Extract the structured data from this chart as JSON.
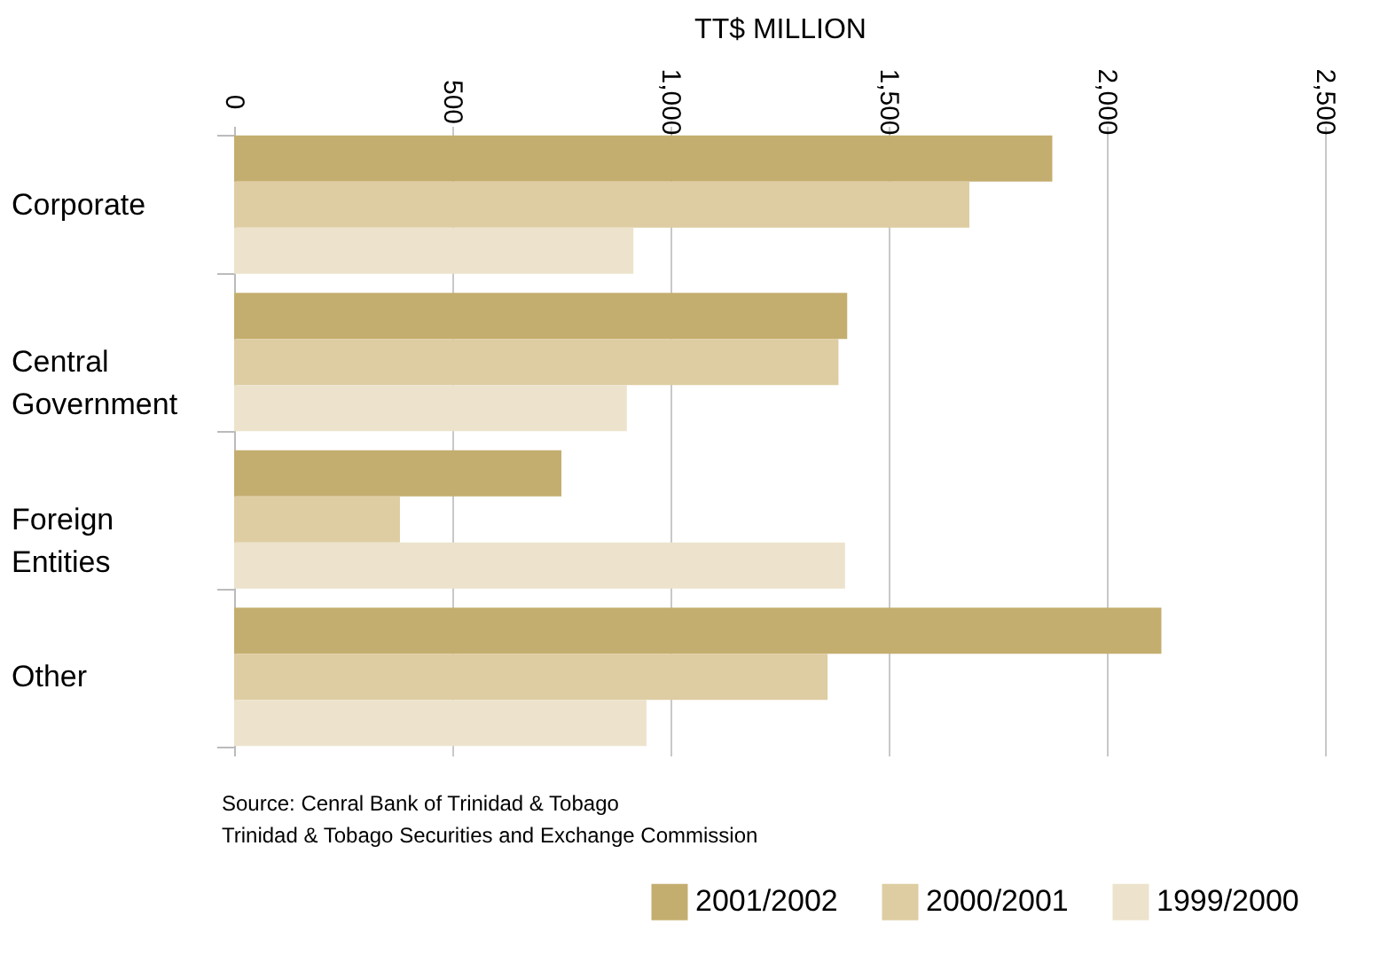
{
  "chart_data": {
    "type": "bar",
    "orientation": "horizontal",
    "xlabel": "TT$ MILLION",
    "categories": [
      "Corporate",
      "Central Government",
      "Foreign Entities",
      "Other"
    ],
    "series": [
      {
        "name": "2001/2002",
        "color": "#c4ae6f",
        "values": [
          1875,
          1405,
          750,
          2125
        ]
      },
      {
        "name": "2000/2001",
        "color": "#decda2",
        "values": [
          1685,
          1385,
          380,
          1360
        ]
      },
      {
        "name": "1999/2000",
        "color": "#ede3cc",
        "values": [
          915,
          900,
          1400,
          945
        ]
      }
    ],
    "xlim": [
      0,
      2500
    ],
    "xticks": [
      0,
      {
        "value": 500,
        "label": "500"
      },
      {
        "value": 1000,
        "label": "1,000"
      },
      {
        "value": 1500,
        "label": "1,500"
      },
      {
        "value": 2000,
        "label": "2,000"
      },
      {
        "value": 2500,
        "label": "2,500"
      }
    ],
    "grid": "x",
    "legend": "bottom right",
    "annotations": [
      "Source: Cenral Bank of Trinidad & Tobago",
      "Trinidad & Tobago Securities and Exchange Commission"
    ]
  }
}
